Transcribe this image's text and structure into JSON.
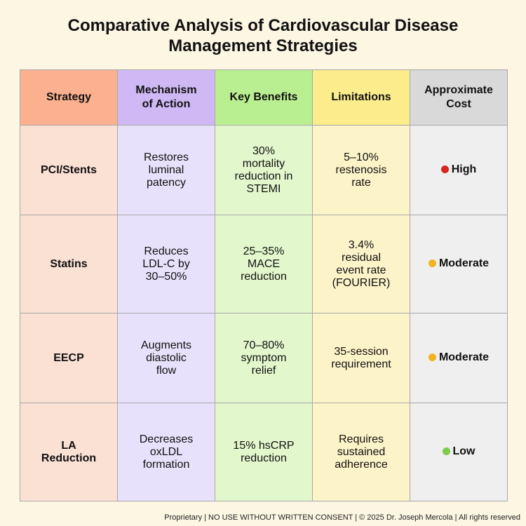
{
  "title_lines": [
    "Comparative Analysis of Cardiovascular Disease",
    "Management Strategies"
  ],
  "headers": [
    {
      "lines": [
        "Strategy"
      ]
    },
    {
      "lines": [
        "Mechanism",
        "of Action"
      ]
    },
    {
      "lines": [
        "Key Benefits"
      ]
    },
    {
      "lines": [
        "Limitations"
      ]
    },
    {
      "lines": [
        "Approximate",
        "Cost"
      ]
    }
  ],
  "rows": [
    {
      "strategy": [
        "PCI/Stents"
      ],
      "mechanism": [
        "Restores",
        "luminal",
        "patency"
      ],
      "benefits": [
        "30%",
        "mortality",
        "reduction in",
        "STEMI"
      ],
      "limitations": [
        "5–10%",
        "restenosis",
        "rate"
      ],
      "cost": {
        "label": "High",
        "dot": "#d7261e"
      }
    },
    {
      "strategy": [
        "Statins"
      ],
      "mechanism": [
        "Reduces",
        "LDL-C by",
        "30–50%"
      ],
      "benefits": [
        "25–35%",
        "MACE",
        "reduction"
      ],
      "limitations": [
        "3.4%",
        "residual",
        "event rate",
        "(FOURIER)"
      ],
      "cost": {
        "label": "Moderate",
        "dot": "#f0b41e"
      }
    },
    {
      "strategy": [
        "EECP"
      ],
      "mechanism": [
        "Augments",
        "diastolic",
        "flow"
      ],
      "benefits": [
        "70–80%",
        "symptom",
        "relief"
      ],
      "limitations": [
        "35-session",
        "requirement"
      ],
      "cost": {
        "label": "Moderate",
        "dot": "#f0b41e"
      }
    },
    {
      "strategy": [
        "LA",
        "Reduction"
      ],
      "mechanism": [
        "Decreases",
        "oxLDL",
        "formation"
      ],
      "benefits": [
        "15% hsCRP",
        "reduction"
      ],
      "limitations": [
        "Requires",
        "sustained",
        "adherence"
      ],
      "cost": {
        "label": "Low",
        "dot": "#7ccb4a"
      }
    }
  ],
  "colors": {
    "header": [
      "#fbb08f",
      "#cfb8f3",
      "#b9ef91",
      "#fdec8c",
      "#d9d9d9"
    ],
    "body": [
      "#fbe0d4",
      "#e8e1fb",
      "#e2f7cc",
      "#fdf3c9",
      "#efefef"
    ]
  },
  "footer": "Proprietary | NO USE WITHOUT WRITTEN CONSENT | © 2025 Dr. Joseph Mercola | All rights reserved"
}
